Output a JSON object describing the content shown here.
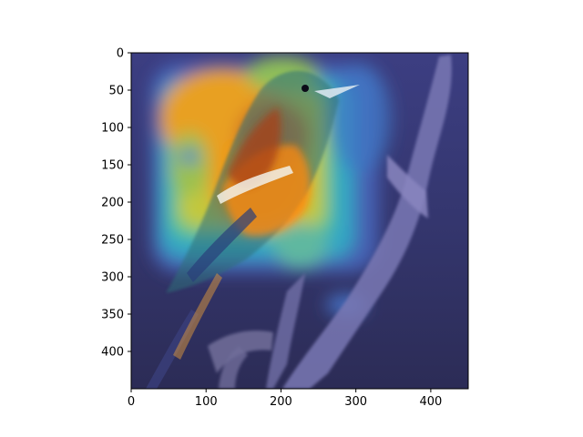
{
  "image": {
    "subject": "bird-on-branch",
    "overlay": "attention-heatmap",
    "colormap": "jet",
    "xlim": [
      0,
      450
    ],
    "ylim": [
      450,
      0
    ]
  },
  "axes": {
    "x_ticks": [
      {
        "value": 0,
        "label": "0"
      },
      {
        "value": 100,
        "label": "100"
      },
      {
        "value": 200,
        "label": "200"
      },
      {
        "value": 300,
        "label": "300"
      },
      {
        "value": 400,
        "label": "400"
      }
    ],
    "y_ticks": [
      {
        "value": 0,
        "label": "0"
      },
      {
        "value": 50,
        "label": "50"
      },
      {
        "value": 100,
        "label": "100"
      },
      {
        "value": 150,
        "label": "150"
      },
      {
        "value": 200,
        "label": "200"
      },
      {
        "value": 250,
        "label": "250"
      },
      {
        "value": 300,
        "label": "300"
      },
      {
        "value": 350,
        "label": "350"
      },
      {
        "value": 400,
        "label": "400"
      }
    ]
  }
}
